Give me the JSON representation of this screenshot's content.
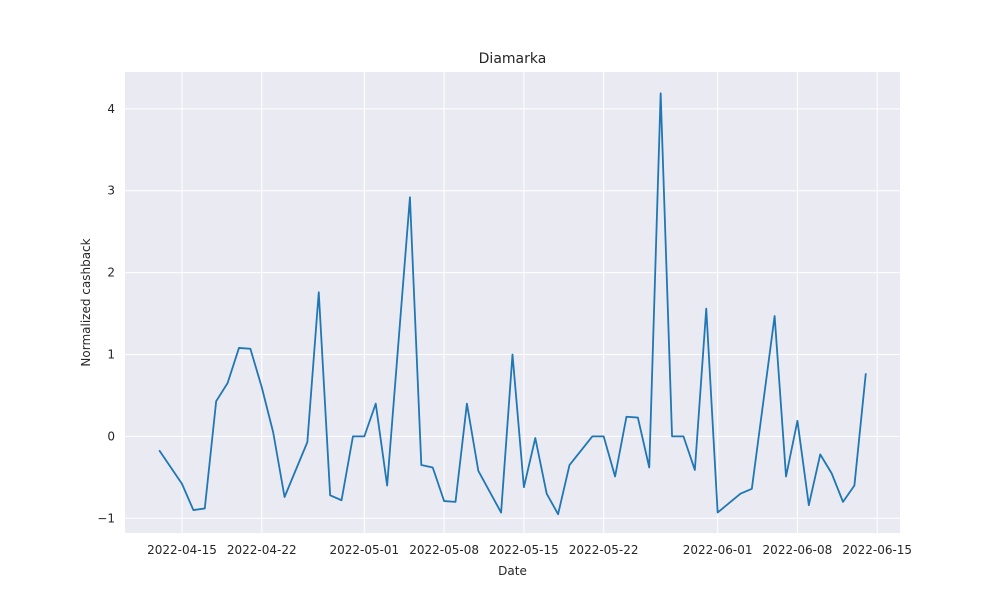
{
  "chart_data": {
    "type": "line",
    "title": "Diamarka",
    "xlabel": "Date",
    "ylabel": "Normalized cashback",
    "xlim": [
      "2022-04-10",
      "2022-06-17"
    ],
    "ylim": [
      -1.18,
      4.45
    ],
    "grid": true,
    "background_color": "#eaeaf2",
    "grid_color": "#ffffff",
    "line_color": "#1f77b4",
    "x_ticks": [
      "2022-04-15",
      "2022-04-22",
      "2022-05-01",
      "2022-05-08",
      "2022-05-15",
      "2022-05-22",
      "2022-06-01",
      "2022-06-08",
      "2022-06-15"
    ],
    "y_ticks": [
      -1,
      0,
      1,
      2,
      3,
      4
    ],
    "y_tick_labels": [
      "−1",
      "0",
      "1",
      "2",
      "3",
      "4"
    ],
    "series": [
      {
        "x": [
          "2022-04-13",
          "2022-04-15",
          "2022-04-16",
          "2022-04-17",
          "2022-04-18",
          "2022-04-19",
          "2022-04-20",
          "2022-04-21",
          "2022-04-22",
          "2022-04-23",
          "2022-04-24",
          "2022-04-26",
          "2022-04-27",
          "2022-04-28",
          "2022-04-29",
          "2022-04-30",
          "2022-05-01",
          "2022-05-02",
          "2022-05-03",
          "2022-05-05",
          "2022-05-06",
          "2022-05-07",
          "2022-05-08",
          "2022-05-09",
          "2022-05-10",
          "2022-05-11",
          "2022-05-13",
          "2022-05-14",
          "2022-05-15",
          "2022-05-16",
          "2022-05-17",
          "2022-05-18",
          "2022-05-19",
          "2022-05-21",
          "2022-05-22",
          "2022-05-23",
          "2022-05-24",
          "2022-05-25",
          "2022-05-26",
          "2022-05-27",
          "2022-05-28",
          "2022-05-29",
          "2022-05-30",
          "2022-05-31",
          "2022-06-01",
          "2022-06-03",
          "2022-06-04",
          "2022-06-06",
          "2022-06-07",
          "2022-06-08",
          "2022-06-09",
          "2022-06-10",
          "2022-06-11",
          "2022-06-12",
          "2022-06-13",
          "2022-06-14"
        ],
        "values": [
          -0.17,
          -0.58,
          -0.9,
          -0.88,
          0.43,
          0.65,
          1.08,
          1.07,
          0.6,
          0.05,
          -0.74,
          -0.07,
          1.76,
          -0.72,
          -0.78,
          0.0,
          0.0,
          0.4,
          -0.6,
          2.92,
          -0.35,
          -0.38,
          -0.79,
          -0.8,
          0.4,
          -0.42,
          -0.93,
          1.0,
          -0.62,
          -0.02,
          -0.7,
          -0.95,
          -0.35,
          0.0,
          0.0,
          -0.49,
          0.24,
          0.23,
          -0.38,
          4.19,
          0.0,
          0.0,
          -0.41,
          1.56,
          -0.93,
          -0.7,
          -0.64,
          1.47,
          -0.49,
          0.19,
          -0.84,
          -0.22,
          -0.45,
          -0.8,
          -0.6,
          0.77
        ]
      }
    ]
  }
}
